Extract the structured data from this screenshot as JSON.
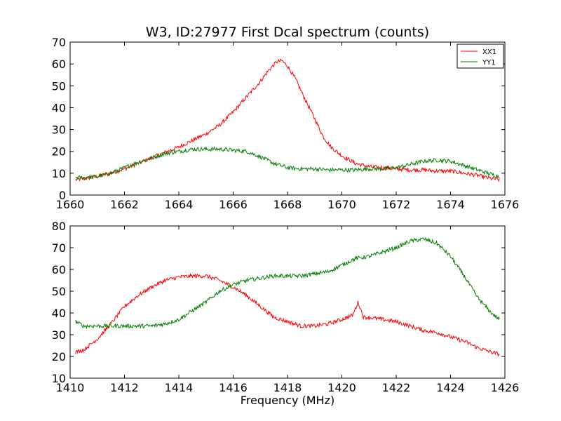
{
  "figure": {
    "title": "W3, ID:27977 First Dcal spectrum (counts)",
    "xlabel": "Frequency (MHz)"
  },
  "colors": {
    "XX1": "#ff0000",
    "YY1": "#007f00",
    "axes": "#000000",
    "background": "#ffffff"
  },
  "chart_data": [
    {
      "type": "line",
      "title": "W3, ID:27977 First Dcal spectrum (counts)",
      "xlabel": "",
      "ylabel": "",
      "xlim": [
        1660,
        1676
      ],
      "ylim": [
        0,
        70
      ],
      "xticks": [
        "1660",
        "1662",
        "1664",
        "1666",
        "1668",
        "1670",
        "1672",
        "1674",
        "1676"
      ],
      "yticks": [
        "0",
        "10",
        "20",
        "30",
        "40",
        "50",
        "60",
        "70"
      ],
      "grid": false,
      "legend": {
        "position": "top-right",
        "entries": [
          "XX1",
          "YY1"
        ]
      },
      "series": [
        {
          "name": "XX1",
          "color": "#ff0000",
          "x": [
            1660.2,
            1660.5,
            1661,
            1661.5,
            1662,
            1662.5,
            1663,
            1663.5,
            1664,
            1664.5,
            1665,
            1665.5,
            1666,
            1666.5,
            1667,
            1667.3,
            1667.6,
            1667.8,
            1668,
            1668.3,
            1668.6,
            1669,
            1669.3,
            1669.6,
            1670,
            1670.5,
            1671,
            1671.5,
            1672,
            1672.5,
            1673,
            1673.5,
            1674,
            1674.5,
            1675,
            1675.5,
            1675.8
          ],
          "y": [
            7,
            7.5,
            8.5,
            10,
            12,
            14.5,
            17,
            19.5,
            22,
            25,
            28,
            32,
            38,
            45,
            52,
            57,
            61,
            61.5,
            59,
            53,
            45,
            35,
            27,
            22,
            18,
            14.5,
            13,
            12.5,
            12,
            11.5,
            11.5,
            11,
            11,
            10,
            9,
            7.5,
            7
          ]
        },
        {
          "name": "YY1",
          "color": "#007f00",
          "x": [
            1660.2,
            1660.5,
            1661,
            1661.5,
            1662,
            1662.5,
            1663,
            1663.5,
            1664,
            1664.5,
            1665,
            1665.5,
            1666,
            1666.5,
            1667,
            1667.5,
            1668,
            1668.5,
            1669,
            1669.5,
            1670,
            1670.5,
            1671,
            1671.5,
            1672,
            1672.5,
            1673,
            1673.5,
            1674,
            1674.5,
            1675,
            1675.5,
            1675.8
          ],
          "y": [
            8,
            8,
            8.5,
            10,
            12.5,
            15,
            17,
            19,
            20,
            21,
            21,
            21,
            20.5,
            20,
            17.5,
            14.5,
            12.5,
            12,
            12,
            11.5,
            11.5,
            11.5,
            12,
            12,
            12.5,
            14,
            15.5,
            16,
            15.5,
            13.5,
            11.5,
            9.5,
            8.5
          ]
        }
      ]
    },
    {
      "type": "line",
      "title": "",
      "xlabel": "Frequency (MHz)",
      "ylabel": "",
      "xlim": [
        1410,
        1426
      ],
      "ylim": [
        10,
        80
      ],
      "xticks": [
        "1410",
        "1412",
        "1414",
        "1416",
        "1418",
        "1420",
        "1422",
        "1424",
        "1426"
      ],
      "yticks": [
        "10",
        "20",
        "30",
        "40",
        "50",
        "60",
        "70",
        "80"
      ],
      "grid": false,
      "legend": null,
      "series": [
        {
          "name": "XX1",
          "color": "#ff0000",
          "x": [
            1410.2,
            1410.5,
            1411,
            1411.5,
            1412,
            1412.5,
            1413,
            1413.5,
            1414,
            1414.5,
            1415,
            1415.5,
            1416,
            1416.5,
            1417,
            1417.5,
            1418,
            1418.5,
            1419,
            1419.5,
            1420,
            1420.4,
            1420.6,
            1420.8,
            1421,
            1421.5,
            1422,
            1422.5,
            1423,
            1423.5,
            1424,
            1424.5,
            1425,
            1425.5,
            1425.8
          ],
          "y": [
            22,
            23,
            28,
            35,
            43,
            48,
            52,
            55,
            56.5,
            57,
            57,
            55,
            52,
            48,
            43,
            38,
            36,
            34,
            34,
            35,
            37,
            39,
            45,
            38,
            38,
            37,
            36,
            34,
            32,
            31,
            29,
            27,
            24,
            22,
            21
          ]
        },
        {
          "name": "YY1",
          "color": "#007f00",
          "x": [
            1410.2,
            1410.5,
            1411,
            1411.5,
            1412,
            1412.5,
            1413,
            1413.5,
            1414,
            1414.5,
            1415,
            1415.5,
            1416,
            1416.5,
            1417,
            1417.5,
            1418,
            1418.5,
            1419,
            1419.5,
            1420,
            1420.5,
            1421,
            1421.5,
            1422,
            1422.5,
            1423,
            1423.5,
            1424,
            1424.5,
            1425,
            1425.5,
            1425.8
          ],
          "y": [
            36,
            34,
            34,
            34,
            34,
            34,
            34,
            35,
            37,
            41,
            45,
            50,
            53,
            55,
            56,
            57,
            57,
            57,
            58,
            59,
            62,
            65,
            66,
            68,
            70,
            73,
            74,
            72,
            66,
            57,
            47,
            40,
            37
          ]
        }
      ]
    }
  ]
}
